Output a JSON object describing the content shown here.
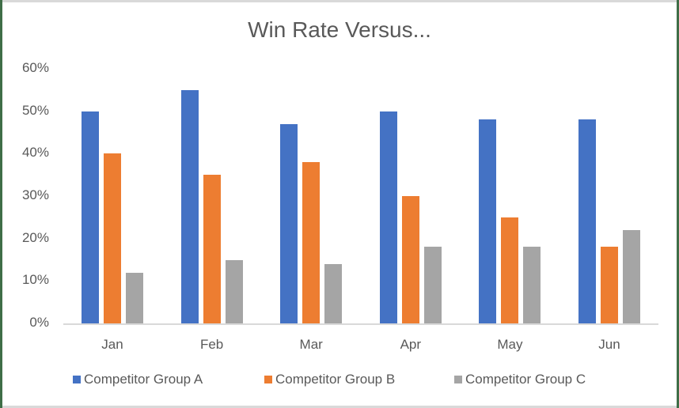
{
  "chart_data": {
    "type": "bar",
    "title": "Win Rate Versus...",
    "xlabel": "",
    "ylabel": "",
    "categories": [
      "Jan",
      "Feb",
      "Mar",
      "Apr",
      "May",
      "Jun"
    ],
    "series": [
      {
        "name": "Competitor Group A",
        "color": "#4472c4",
        "values": [
          50,
          55,
          47,
          50,
          48,
          48
        ]
      },
      {
        "name": "Competitor Group B",
        "color": "#ed7d31",
        "values": [
          40,
          35,
          38,
          30,
          25,
          18
        ]
      },
      {
        "name": "Competitor Group C",
        "color": "#a5a5a5",
        "values": [
          12,
          15,
          14,
          18,
          18,
          22
        ]
      }
    ],
    "ylim": [
      0,
      60
    ],
    "yticks": [
      "0%",
      "10%",
      "20%",
      "30%",
      "40%",
      "50%",
      "60%"
    ],
    "grid": false,
    "legend_position": "bottom"
  }
}
